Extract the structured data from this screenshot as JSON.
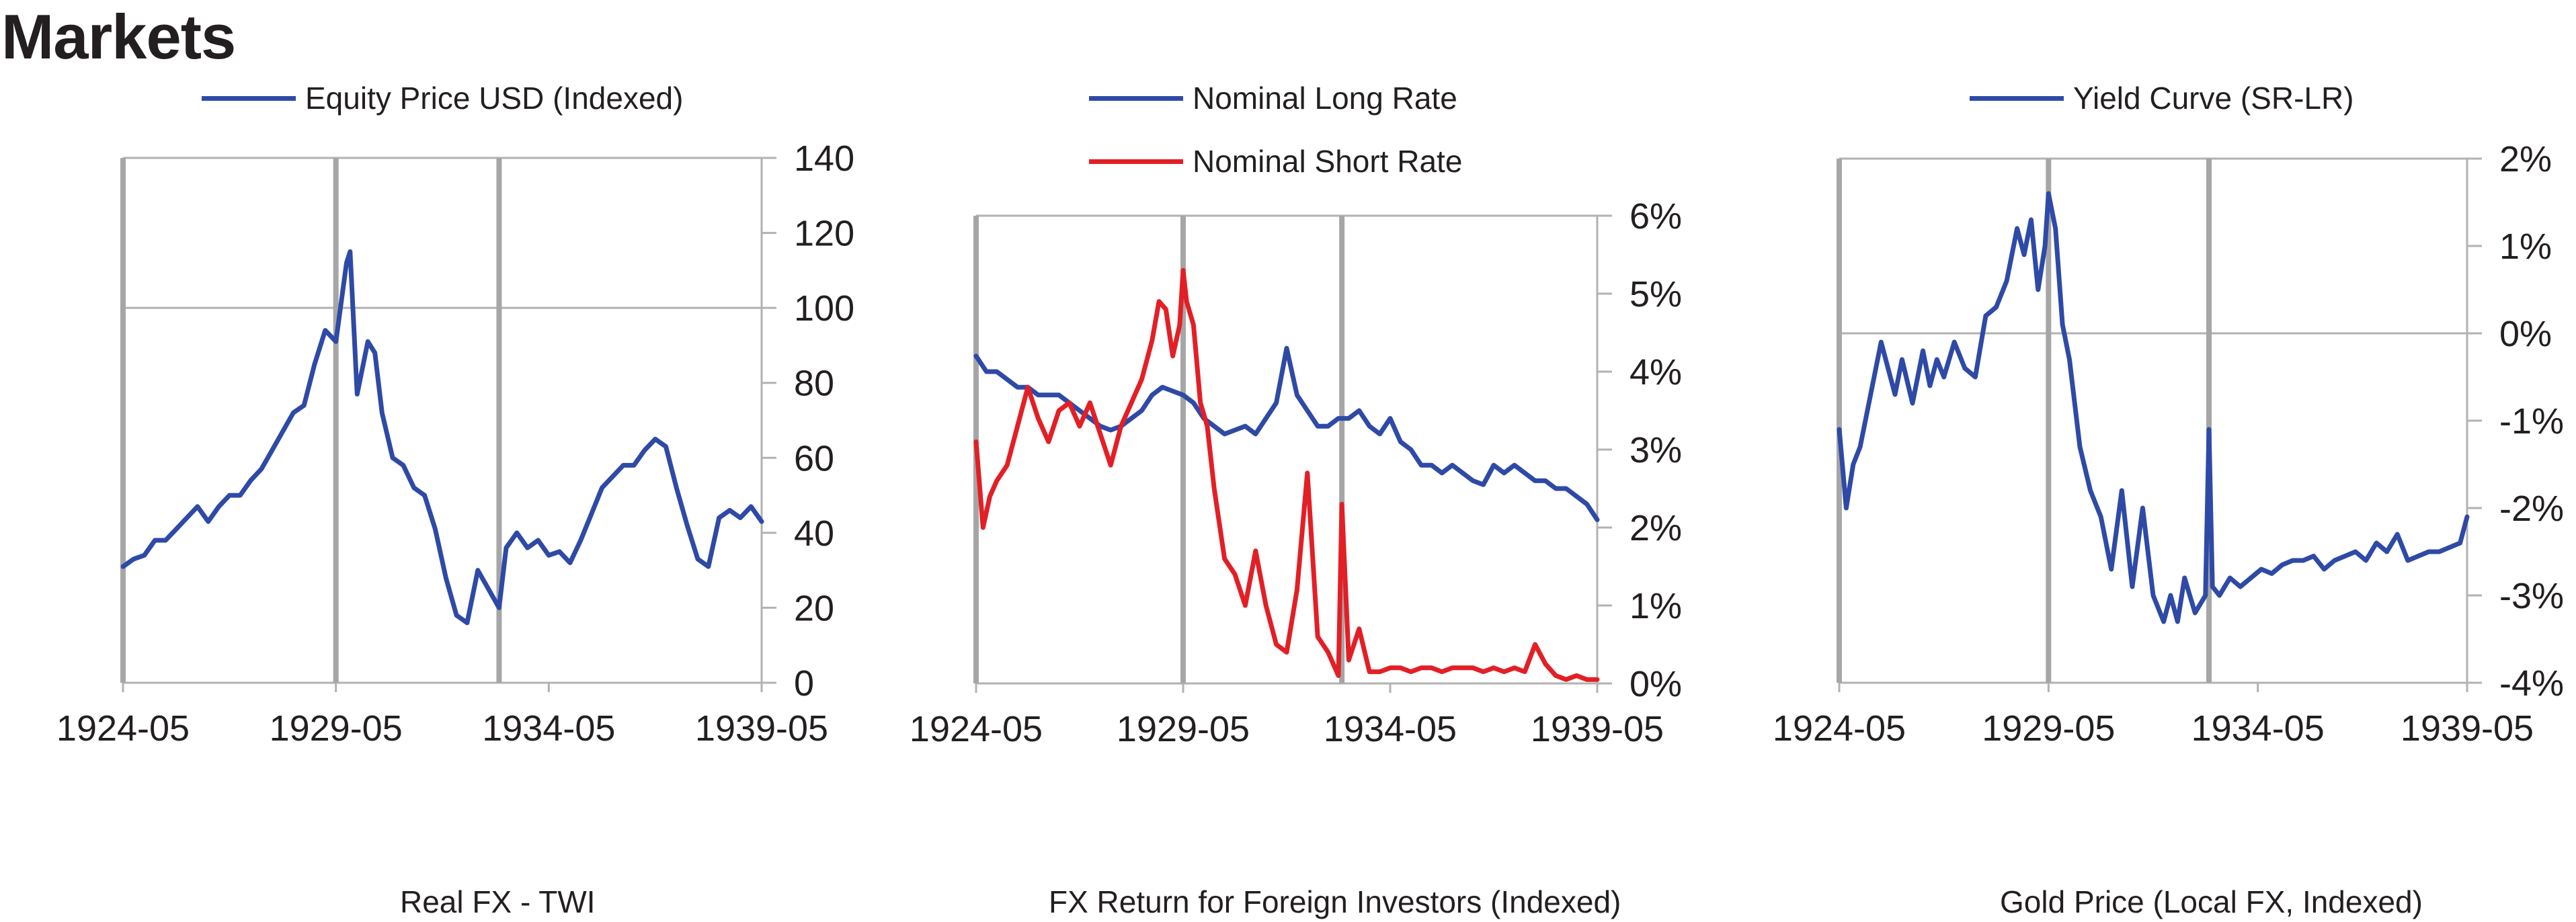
{
  "page": {
    "title": "Markets"
  },
  "chart_data": [
    {
      "type": "line",
      "legend_placement": "top",
      "ylabel_position": "right",
      "ylim": [
        0,
        140
      ],
      "yticks": [
        "0",
        "20",
        "40",
        "60",
        "80",
        "100",
        "120",
        "140"
      ],
      "xticks": [
        "1924-05",
        "1929-05",
        "1934-05",
        "1939-05"
      ],
      "reference_line": 100,
      "vertical_markers": [
        "1929-05",
        "1933-03"
      ],
      "series": [
        {
          "name": "Equity Price USD (Indexed)",
          "color": "#2e4aa6",
          "x": [
            "1924-05",
            "1924-08",
            "1924-11",
            "1925-02",
            "1925-05",
            "1925-08",
            "1925-11",
            "1926-02",
            "1926-05",
            "1926-08",
            "1926-11",
            "1927-02",
            "1927-05",
            "1927-08",
            "1927-11",
            "1928-02",
            "1928-05",
            "1928-08",
            "1928-11",
            "1929-02",
            "1929-05",
            "1929-08",
            "1929-09",
            "1929-11",
            "1930-02",
            "1930-04",
            "1930-06",
            "1930-09",
            "1930-12",
            "1931-03",
            "1931-06",
            "1931-09",
            "1931-12",
            "1932-03",
            "1932-06",
            "1932-09",
            "1932-12",
            "1933-03",
            "1933-05",
            "1933-08",
            "1933-11",
            "1934-02",
            "1934-05",
            "1934-08",
            "1934-11",
            "1935-02",
            "1935-05",
            "1935-08",
            "1935-11",
            "1936-02",
            "1936-05",
            "1936-08",
            "1936-11",
            "1937-02",
            "1937-05",
            "1937-08",
            "1937-11",
            "1938-02",
            "1938-05",
            "1938-08",
            "1938-11",
            "1939-02",
            "1939-05"
          ],
          "y": [
            31,
            33,
            34,
            38,
            38,
            41,
            44,
            47,
            43,
            47,
            50,
            50,
            54,
            57,
            62,
            67,
            72,
            74,
            85,
            94,
            91,
            112,
            115,
            77,
            91,
            88,
            72,
            60,
            58,
            52,
            50,
            41,
            28,
            18,
            16,
            30,
            25,
            20,
            36,
            40,
            36,
            38,
            34,
            35,
            32,
            38,
            45,
            52,
            55,
            58,
            58,
            62,
            65,
            63,
            52,
            42,
            33,
            31,
            44,
            46,
            44,
            47,
            43
          ]
        }
      ]
    },
    {
      "type": "line",
      "legend_placement": "top",
      "ylabel_position": "right",
      "ylim": [
        0,
        6
      ],
      "yticks": [
        "0%",
        "1%",
        "2%",
        "3%",
        "4%",
        "5%",
        "6%"
      ],
      "xticks": [
        "1924-05",
        "1929-05",
        "1934-05",
        "1939-05"
      ],
      "vertical_markers": [
        "1929-05",
        "1933-03"
      ],
      "series": [
        {
          "name": "Nominal Long Rate",
          "color": "#2e4aa6",
          "x": [
            "1924-05",
            "1924-08",
            "1924-11",
            "1925-02",
            "1925-05",
            "1925-08",
            "1925-11",
            "1926-02",
            "1926-05",
            "1926-08",
            "1926-11",
            "1927-02",
            "1927-05",
            "1927-08",
            "1927-11",
            "1928-02",
            "1928-05",
            "1928-08",
            "1928-11",
            "1929-02",
            "1929-05",
            "1929-08",
            "1929-11",
            "1930-02",
            "1930-05",
            "1930-08",
            "1930-11",
            "1931-02",
            "1931-05",
            "1931-08",
            "1931-11",
            "1932-02",
            "1932-05",
            "1932-08",
            "1932-11",
            "1933-02",
            "1933-05",
            "1933-08",
            "1933-11",
            "1934-02",
            "1934-05",
            "1934-08",
            "1934-11",
            "1935-02",
            "1935-05",
            "1935-08",
            "1935-11",
            "1936-02",
            "1936-05",
            "1936-08",
            "1936-11",
            "1937-02",
            "1937-05",
            "1937-08",
            "1937-11",
            "1938-02",
            "1938-05",
            "1938-08",
            "1938-11",
            "1939-02",
            "1939-05"
          ],
          "y": [
            4.2,
            4.0,
            4.0,
            3.9,
            3.8,
            3.8,
            3.7,
            3.7,
            3.7,
            3.6,
            3.5,
            3.4,
            3.3,
            3.25,
            3.3,
            3.4,
            3.5,
            3.7,
            3.8,
            3.75,
            3.7,
            3.6,
            3.4,
            3.3,
            3.2,
            3.25,
            3.3,
            3.2,
            3.4,
            3.6,
            4.3,
            3.7,
            3.5,
            3.3,
            3.3,
            3.4,
            3.4,
            3.5,
            3.3,
            3.2,
            3.4,
            3.1,
            3.0,
            2.8,
            2.8,
            2.7,
            2.8,
            2.7,
            2.6,
            2.55,
            2.8,
            2.7,
            2.8,
            2.7,
            2.6,
            2.6,
            2.5,
            2.5,
            2.4,
            2.3,
            2.1
          ]
        },
        {
          "name": "Nominal Short Rate",
          "color": "#e31f26",
          "x": [
            "1924-05",
            "1924-07",
            "1924-09",
            "1924-11",
            "1925-02",
            "1925-05",
            "1925-08",
            "1925-11",
            "1926-02",
            "1926-05",
            "1926-08",
            "1926-11",
            "1927-02",
            "1927-05",
            "1927-08",
            "1927-11",
            "1928-02",
            "1928-05",
            "1928-08",
            "1928-10",
            "1928-12",
            "1929-02",
            "1929-04",
            "1929-05",
            "1929-06",
            "1929-08",
            "1929-10",
            "1929-12",
            "1930-02",
            "1930-05",
            "1930-08",
            "1930-11",
            "1931-02",
            "1931-05",
            "1931-08",
            "1931-11",
            "1932-02",
            "1932-05",
            "1932-08",
            "1932-11",
            "1933-02",
            "1933-03",
            "1933-05",
            "1933-08",
            "1933-11",
            "1934-02",
            "1934-05",
            "1934-08",
            "1934-11",
            "1935-02",
            "1935-05",
            "1935-08",
            "1935-11",
            "1936-02",
            "1936-05",
            "1936-08",
            "1936-11",
            "1937-02",
            "1937-05",
            "1937-08",
            "1937-11",
            "1938-02",
            "1938-05",
            "1938-08",
            "1938-11",
            "1939-02",
            "1939-05"
          ],
          "y": [
            3.1,
            2.0,
            2.4,
            2.6,
            2.8,
            3.3,
            3.8,
            3.4,
            3.1,
            3.5,
            3.6,
            3.3,
            3.6,
            3.2,
            2.8,
            3.3,
            3.6,
            3.9,
            4.4,
            4.9,
            4.8,
            4.2,
            4.6,
            5.3,
            4.9,
            4.6,
            3.6,
            3.3,
            2.5,
            1.6,
            1.4,
            1.0,
            1.7,
            1.0,
            0.5,
            0.4,
            1.2,
            2.7,
            0.6,
            0.4,
            0.1,
            2.3,
            0.3,
            0.7,
            0.15,
            0.15,
            0.2,
            0.2,
            0.15,
            0.2,
            0.2,
            0.15,
            0.2,
            0.2,
            0.2,
            0.15,
            0.2,
            0.15,
            0.2,
            0.15,
            0.5,
            0.25,
            0.1,
            0.05,
            0.1,
            0.05,
            0.05
          ]
        }
      ]
    },
    {
      "type": "line",
      "legend_placement": "top",
      "ylabel_position": "right",
      "ylim": [
        -4,
        2
      ],
      "yticks": [
        "-4%",
        "-3%",
        "-2%",
        "-1%",
        "0%",
        "1%",
        "2%"
      ],
      "xticks": [
        "1924-05",
        "1929-05",
        "1934-05",
        "1939-05"
      ],
      "reference_line": 0,
      "vertical_markers": [
        "1929-05",
        "1933-03"
      ],
      "series": [
        {
          "name": "Yield Curve (SR-LR)",
          "color": "#2e4aa6",
          "x": [
            "1924-05",
            "1924-07",
            "1924-09",
            "1924-11",
            "1925-02",
            "1925-05",
            "1925-07",
            "1925-09",
            "1925-11",
            "1926-02",
            "1926-05",
            "1926-07",
            "1926-09",
            "1926-11",
            "1927-02",
            "1927-05",
            "1927-08",
            "1927-11",
            "1928-02",
            "1928-05",
            "1928-08",
            "1928-10",
            "1928-12",
            "1929-02",
            "1929-04",
            "1929-05",
            "1929-07",
            "1929-09",
            "1929-11",
            "1930-02",
            "1930-05",
            "1930-08",
            "1930-11",
            "1931-02",
            "1931-05",
            "1931-08",
            "1931-11",
            "1932-02",
            "1932-04",
            "1932-06",
            "1932-08",
            "1932-11",
            "1933-02",
            "1933-03",
            "1933-04",
            "1933-06",
            "1933-09",
            "1933-12",
            "1934-03",
            "1934-06",
            "1934-09",
            "1934-12",
            "1935-03",
            "1935-06",
            "1935-09",
            "1935-12",
            "1936-03",
            "1936-06",
            "1936-09",
            "1936-12",
            "1937-03",
            "1937-06",
            "1937-09",
            "1937-12",
            "1938-03",
            "1938-06",
            "1938-09",
            "1938-12",
            "1939-03",
            "1939-05"
          ],
          "y": [
            -1.1,
            -2.0,
            -1.5,
            -1.3,
            -0.7,
            -0.1,
            -0.4,
            -0.7,
            -0.3,
            -0.8,
            -0.2,
            -0.6,
            -0.3,
            -0.5,
            -0.1,
            -0.4,
            -0.5,
            0.2,
            0.3,
            0.6,
            1.2,
            0.9,
            1.3,
            0.5,
            1.0,
            1.6,
            1.2,
            0.1,
            -0.3,
            -1.3,
            -1.8,
            -2.1,
            -2.7,
            -1.8,
            -2.9,
            -2.0,
            -3.0,
            -3.3,
            -3.0,
            -3.3,
            -2.8,
            -3.2,
            -3.0,
            -1.1,
            -2.9,
            -3.0,
            -2.8,
            -2.9,
            -2.8,
            -2.7,
            -2.75,
            -2.65,
            -2.6,
            -2.6,
            -2.55,
            -2.7,
            -2.6,
            -2.55,
            -2.5,
            -2.6,
            -2.4,
            -2.5,
            -2.3,
            -2.6,
            -2.55,
            -2.5,
            -2.5,
            -2.45,
            -2.4,
            -2.1
          ]
        }
      ]
    }
  ],
  "clipped_titles": [
    "Real FX - TWI",
    "FX Return for Foreign Investors (Indexed)",
    "Gold Price (Local FX, Indexed)"
  ],
  "colors": {
    "blue": "#2e4aa6",
    "red": "#e31f26",
    "axis": "#b2b2b2",
    "marker": "#a6a6a6",
    "text": "#231f20"
  }
}
